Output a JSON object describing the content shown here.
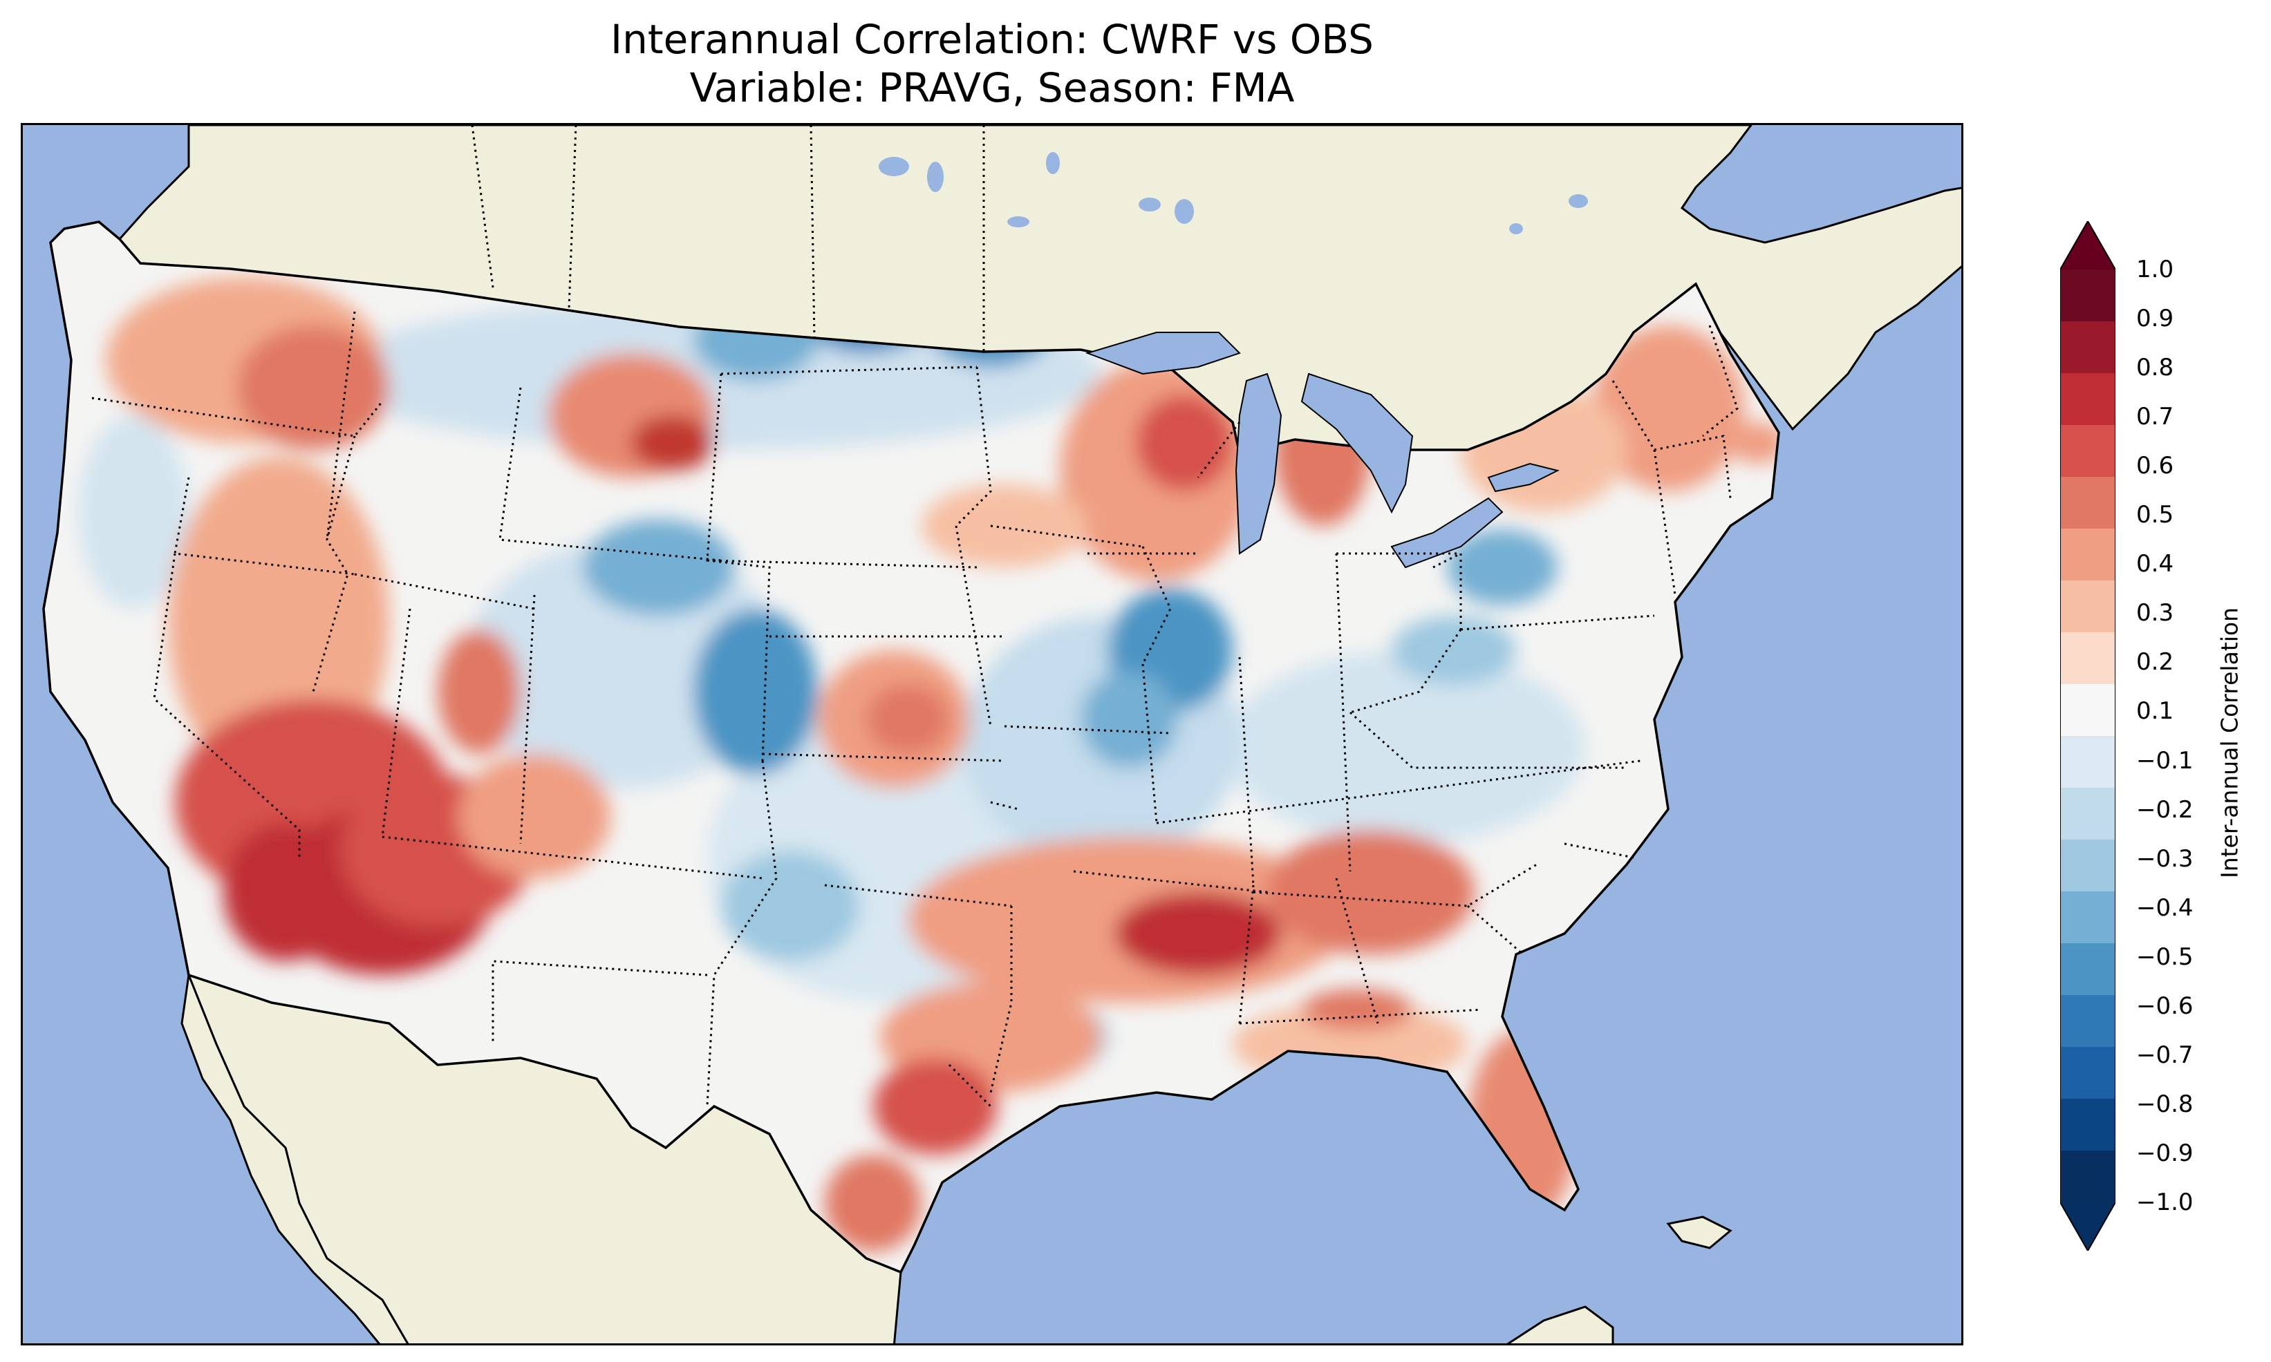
{
  "title_line1": "Interannual Correlation: CWRF vs OBS",
  "title_line2": "Variable: PRAVG, Season: FMA",
  "colorbar": {
    "label": "Inter-annual Correlation",
    "ticks": [
      "1.0",
      "0.9",
      "0.8",
      "0.7",
      "0.6",
      "0.5",
      "0.4",
      "0.3",
      "0.2",
      "0.1",
      "−0.1",
      "−0.2",
      "−0.3",
      "−0.4",
      "−0.5",
      "−0.6",
      "−0.7",
      "−0.8",
      "−0.9",
      "−1.0"
    ],
    "levels": [
      1.0,
      0.9,
      0.8,
      0.7,
      0.6,
      0.5,
      0.4,
      0.3,
      0.2,
      0.1,
      -0.1,
      -0.2,
      -0.3,
      -0.4,
      -0.5,
      -0.6,
      -0.7,
      -0.8,
      -0.9,
      -1.0
    ],
    "colors": [
      "#6b0a22",
      "#9a1a2c",
      "#bf2d35",
      "#d6514b",
      "#e07864",
      "#ef9e82",
      "#f6bfa3",
      "#fbdcca",
      "#f7f7f7",
      "#dce9f2",
      "#c1dbeb",
      "#9dc8e0",
      "#75afd3",
      "#4c94c4",
      "#3079b7",
      "#1c60a6",
      "#0c4584",
      "#073060"
    ],
    "over_color": "#67001f",
    "under_color": "#053061"
  },
  "map": {
    "ocean_color": "#98b5e1",
    "land_color": "#efefdc",
    "lake_color": "#98b5e1"
  }
}
